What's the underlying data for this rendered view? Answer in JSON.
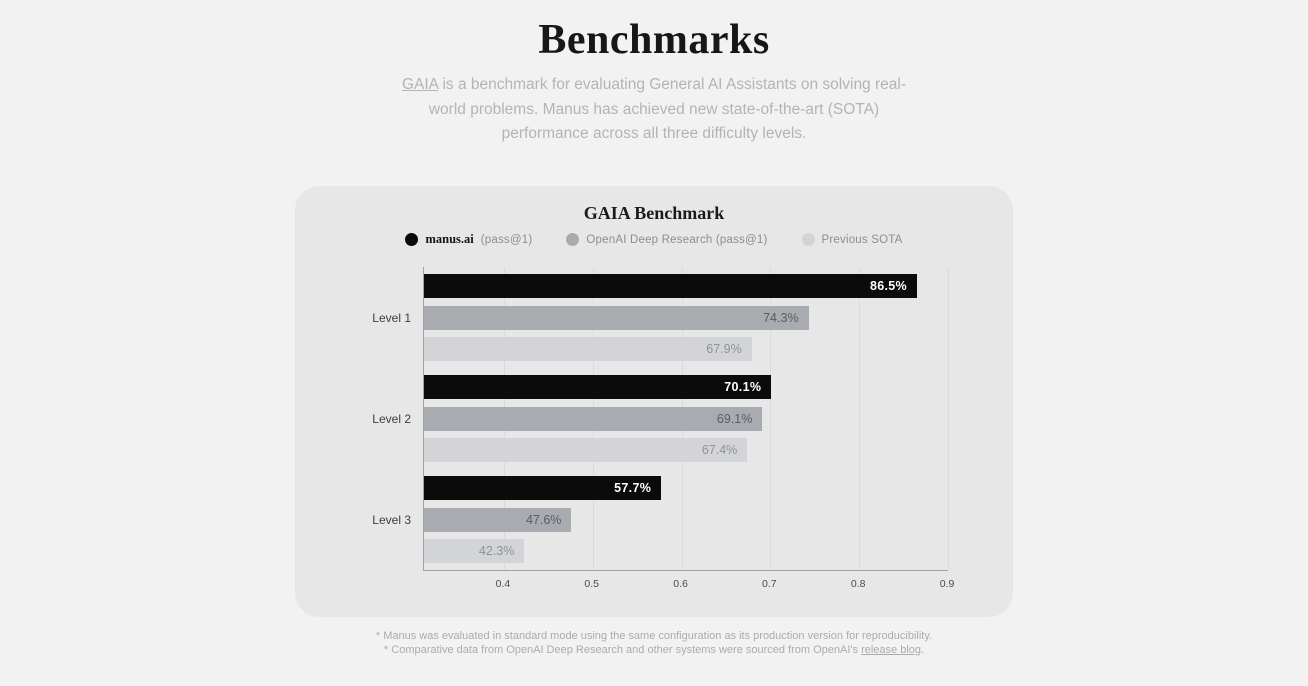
{
  "header": {
    "title": "Benchmarks",
    "subtitle_link_text": "GAIA",
    "subtitle_rest": " is a benchmark for evaluating General AI Assistants on solving real-world problems. Manus has achieved new state-of-the-art (SOTA) performance across all three difficulty levels."
  },
  "colors": {
    "page_bg": "#f2f2f2",
    "card_bg": "#e7e7e8",
    "gridline": "#d9dadc",
    "axis": "#9fa0a3"
  },
  "chart_data": {
    "type": "bar",
    "orientation": "horizontal",
    "title": "GAIA Benchmark",
    "categories": [
      "Level 1",
      "Level 2",
      "Level 3"
    ],
    "series": [
      {
        "name": "manus.ai (pass@1)",
        "color": "#0b0b0c",
        "label_color": "#ffffff",
        "values": [
          0.865,
          0.701,
          0.577
        ],
        "labels": [
          "86.5%",
          "70.1%",
          "57.7%"
        ]
      },
      {
        "name": "OpenAI Deep Research (pass@1)",
        "color": "#a8abaf",
        "label_color": "#595c60",
        "values": [
          0.743,
          0.691,
          0.476
        ],
        "labels": [
          "74.3%",
          "69.1%",
          "47.6%"
        ]
      },
      {
        "name": "Previous SOTA",
        "color": "#d2d4d8",
        "label_color": "#8f9297",
        "values": [
          0.679,
          0.674,
          0.423
        ],
        "labels": [
          "67.9%",
          "67.4%",
          "42.3%"
        ]
      }
    ],
    "legend": [
      {
        "brand": "manus.ai",
        "rest": "(pass@1)"
      },
      {
        "brand": "",
        "rest": "OpenAI Deep Research (pass@1)"
      },
      {
        "brand": "",
        "rest": "Previous SOTA"
      }
    ],
    "legend_position": "top",
    "grid": true,
    "x_ticks": [
      "0.4",
      "0.5",
      "0.6",
      "0.7",
      "0.8",
      "0.9"
    ],
    "xlim": [
      0.31,
      0.9
    ]
  },
  "footnotes": {
    "line1": "* Manus was evaluated in standard mode using the same configuration as its production version for reproducibility.",
    "line2_prefix": "* Comparative data from OpenAI Deep Research and other systems were sourced from OpenAI's ",
    "line2_link": "release blog",
    "line2_suffix": "."
  }
}
